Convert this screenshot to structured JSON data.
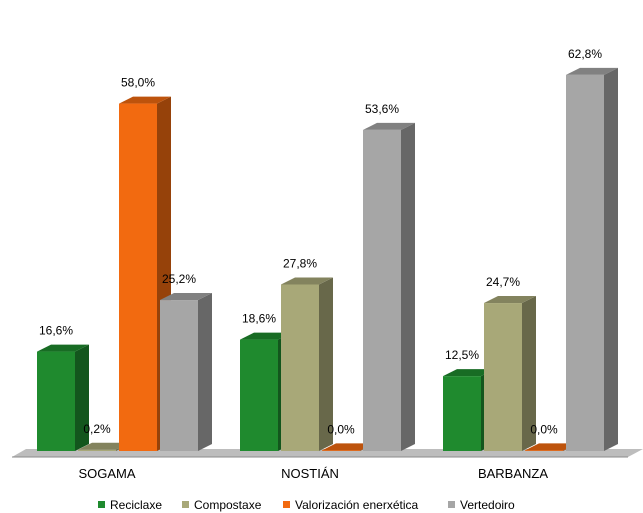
{
  "chart_data": {
    "type": "bar",
    "title": "",
    "xlabel": "",
    "ylabel": "",
    "ylim": [
      0,
      65
    ],
    "grid": false,
    "legend_position": "bottom",
    "categories": [
      "SOGAMA",
      "NOSTIÁN",
      "BARBANZA"
    ],
    "series": [
      {
        "name": "Reciclaxe",
        "values": [
          16.6,
          18.6,
          12.5
        ],
        "labels": [
          "16,6%",
          "18,6%",
          "12,5%"
        ],
        "color": "#1f8a2e"
      },
      {
        "name": "Compostaxe",
        "values": [
          0.2,
          27.8,
          24.7
        ],
        "labels": [
          "0,2%",
          "27,8%",
          "24,7%"
        ],
        "color": "#a8a878"
      },
      {
        "name": "Valorización enerxética",
        "values": [
          58.0,
          0.0,
          0.0
        ],
        "labels": [
          "58,0%",
          "0,0%",
          "0,0%"
        ],
        "color": "#f26a10"
      },
      {
        "name": "Vertedoiro",
        "values": [
          25.2,
          53.6,
          62.8
        ],
        "labels": [
          "25,2%",
          "53,6%",
          "62,8%"
        ],
        "color": "#a6a6a6"
      }
    ]
  }
}
